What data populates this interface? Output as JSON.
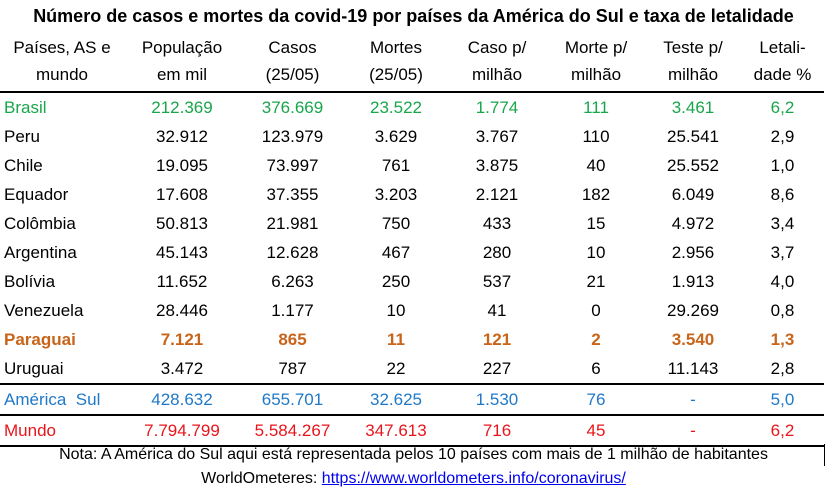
{
  "title": "Número de casos e mortes da covid-19 por países da América do Sul e taxa de letalidade",
  "headers": [
    [
      "Países, AS e",
      "mundo"
    ],
    [
      "População",
      "em mil"
    ],
    [
      "Casos",
      "(25/05)"
    ],
    [
      "Mortes",
      "(25/05)"
    ],
    [
      "Caso p/",
      "milhão"
    ],
    [
      "Morte p/",
      "milhão"
    ],
    [
      "Teste p/",
      "milhão"
    ],
    [
      "Letali-",
      "dade %"
    ]
  ],
  "rows": [
    [
      "Brasil",
      "212.369",
      "376.669",
      "23.522",
      "1.774",
      "111",
      "3.461",
      "6,2"
    ],
    [
      "Peru",
      "32.912",
      "123.979",
      "3.629",
      "3.767",
      "110",
      "25.541",
      "2,9"
    ],
    [
      "Chile",
      "19.095",
      "73.997",
      "761",
      "3.875",
      "40",
      "25.552",
      "1,0"
    ],
    [
      "Equador",
      "17.608",
      "37.355",
      "3.203",
      "2.121",
      "182",
      "6.049",
      "8,6"
    ],
    [
      "Colômbia",
      "50.813",
      "21.981",
      "750",
      "433",
      "15",
      "4.972",
      "3,4"
    ],
    [
      "Argentina",
      "45.143",
      "12.628",
      "467",
      "280",
      "10",
      "2.956",
      "3,7"
    ],
    [
      "Bolívia",
      "11.652",
      "6.263",
      "250",
      "537",
      "21",
      "1.913",
      "4,0"
    ],
    [
      "Venezuela",
      "28.446",
      "1.177",
      "10",
      "41",
      "0",
      "29.269",
      "0,8"
    ],
    [
      "Paraguai",
      "7.121",
      "865",
      "11",
      "121",
      "2",
      "3.540",
      "1,3"
    ],
    [
      "Uruguai",
      "3.472",
      "787",
      "22",
      "227",
      "6",
      "11.143",
      "2,8"
    ],
    [
      "América  Sul",
      "428.632",
      "655.701",
      "32.625",
      "1.530",
      "76",
      "-",
      "5,0"
    ],
    [
      "Mundo",
      "7.794.799",
      "5.584.267",
      "347.613",
      "716",
      "45",
      "-",
      "6,2"
    ]
  ],
  "row_colors": {
    "brasil": "#19a64b",
    "paraguai": "#c8651b",
    "america_sul": "#1f78c8",
    "mundo": "#e8151b"
  },
  "note": "Nota: A América do Sul aqui está representada pelos 10 países com mais de 1 milhão de habitantes",
  "source_label": "WorldOmeteres: ",
  "source_link": "https://www.worldometers.info/coronavirus/"
}
